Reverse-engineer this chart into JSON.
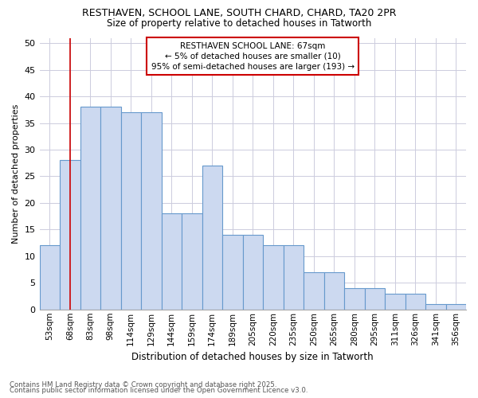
{
  "title1": "RESTHAVEN, SCHOOL LANE, SOUTH CHARD, CHARD, TA20 2PR",
  "title2": "Size of property relative to detached houses in Tatworth",
  "xlabel": "Distribution of detached houses by size in Tatworth",
  "ylabel": "Number of detached properties",
  "categories": [
    "53sqm",
    "68sqm",
    "83sqm",
    "98sqm",
    "114sqm",
    "129sqm",
    "144sqm",
    "159sqm",
    "174sqm",
    "189sqm",
    "205sqm",
    "220sqm",
    "235sqm",
    "250sqm",
    "265sqm",
    "280sqm",
    "295sqm",
    "311sqm",
    "326sqm",
    "341sqm",
    "356sqm"
  ],
  "bar_heights": [
    12,
    28,
    38,
    38,
    37,
    37,
    18,
    18,
    27,
    14,
    14,
    12,
    12,
    7,
    7,
    4,
    4,
    3,
    3,
    1,
    1
  ],
  "bar_color": "#ccd9f0",
  "bar_edge_color": "#6699cc",
  "grid_color": "#ccccdd",
  "annotation_box_color": "#cc0000",
  "vline_color": "#cc0000",
  "vline_x_idx": 1,
  "annotation_text": "RESTHAVEN SCHOOL LANE: 67sqm\n← 5% of detached houses are smaller (10)\n95% of semi-detached houses are larger (193) →",
  "footer1": "Contains HM Land Registry data © Crown copyright and database right 2025.",
  "footer2": "Contains public sector information licensed under the Open Government Licence v3.0.",
  "ylim": [
    0,
    51
  ],
  "yticks": [
    0,
    5,
    10,
    15,
    20,
    25,
    30,
    35,
    40,
    45,
    50
  ]
}
